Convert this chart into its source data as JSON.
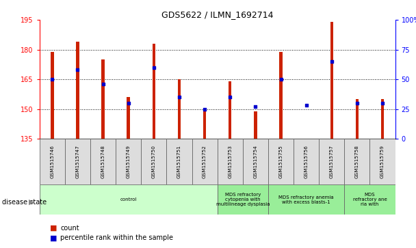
{
  "title": "GDS5622 / ILMN_1692714",
  "samples": [
    "GSM1515746",
    "GSM1515747",
    "GSM1515748",
    "GSM1515749",
    "GSM1515750",
    "GSM1515751",
    "GSM1515752",
    "GSM1515753",
    "GSM1515754",
    "GSM1515755",
    "GSM1515756",
    "GSM1515757",
    "GSM1515758",
    "GSM1515759"
  ],
  "counts": [
    179,
    184,
    175,
    156,
    183,
    165,
    149,
    164,
    149,
    179,
    135,
    194,
    155,
    155
  ],
  "percentiles": [
    50,
    58,
    46,
    30,
    60,
    35,
    25,
    35,
    27,
    50,
    28,
    65,
    30,
    30
  ],
  "ylim_left": [
    135,
    195
  ],
  "ylim_right": [
    0,
    100
  ],
  "yticks_left": [
    135,
    150,
    165,
    180,
    195
  ],
  "yticks_right": [
    0,
    25,
    50,
    75,
    100
  ],
  "bar_color": "#CC2200",
  "dot_color": "#0000CC",
  "disease_groups": [
    {
      "label": "control",
      "start": 0,
      "end": 7,
      "color": "#E8FFE8"
    },
    {
      "label": "MDS refractory\ncytopenia with\nmultilineage dysplasia",
      "start": 7,
      "end": 10,
      "color": "#88EE88"
    },
    {
      "label": "MDS refractory anemia\nwith excess blasts-1",
      "start": 10,
      "end": 13,
      "color": "#88EE88"
    },
    {
      "label": "MDS\nrefractory ane\nria with",
      "start": 13,
      "end": 14,
      "color": "#88EE88"
    }
  ],
  "legend_count": "count",
  "legend_pct": "percentile rank within the sample"
}
